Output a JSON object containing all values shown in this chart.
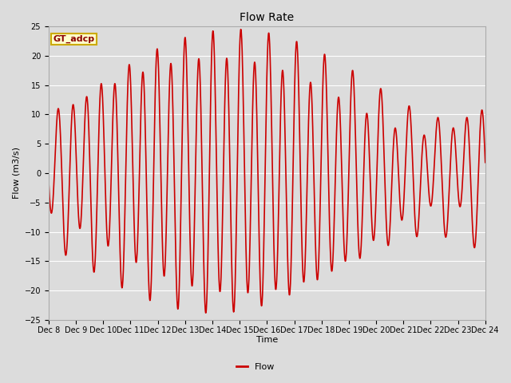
{
  "title": "Flow Rate",
  "xlabel": "Time",
  "ylabel": "Flow (m3/s)",
  "line_color": "#cc0000",
  "line_width": 1.2,
  "ylim": [
    -25,
    25
  ],
  "yticks": [
    -25,
    -20,
    -15,
    -10,
    -5,
    0,
    5,
    10,
    15,
    20,
    25
  ],
  "background_color": "#dcdcdc",
  "plot_bg_color": "#dcdcdc",
  "legend_label": "Flow",
  "annotation_text": "GT_adcp",
  "annotation_bg": "#ffffcc",
  "annotation_border": "#ccaa00",
  "grid_color": "#ffffff",
  "start_day": 8,
  "end_day": 24,
  "num_points": 2000,
  "tidal_period_hours": 12.4,
  "spring_neap_period_days": 14.77,
  "title_fontsize": 10,
  "label_fontsize": 8,
  "tick_fontsize": 7
}
